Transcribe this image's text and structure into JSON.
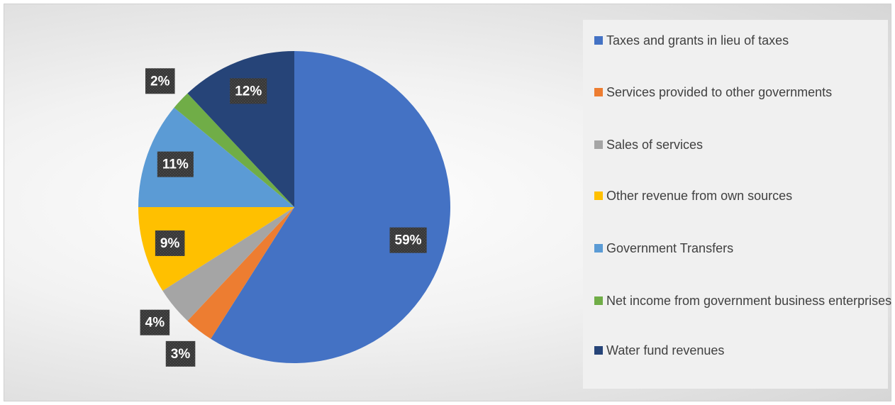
{
  "chart_data": {
    "type": "pie",
    "categories": [
      "Taxes and grants in lieu of taxes",
      "Services provided to other governments",
      "Sales of services",
      "Other revenue from own sources",
      "Government Transfers",
      "Net income from government business enterprises",
      "Water fund revenues"
    ],
    "values": [
      59,
      3,
      4,
      9,
      11,
      2,
      12
    ],
    "value_labels": [
      "59%",
      "3%",
      "4%",
      "9%",
      "11%",
      "2%",
      "12%"
    ],
    "colors": [
      "#4472c4",
      "#ed7d31",
      "#a5a5a5",
      "#ffc000",
      "#5b9bd5",
      "#70ad47",
      "#264478"
    ],
    "legend": "right"
  }
}
